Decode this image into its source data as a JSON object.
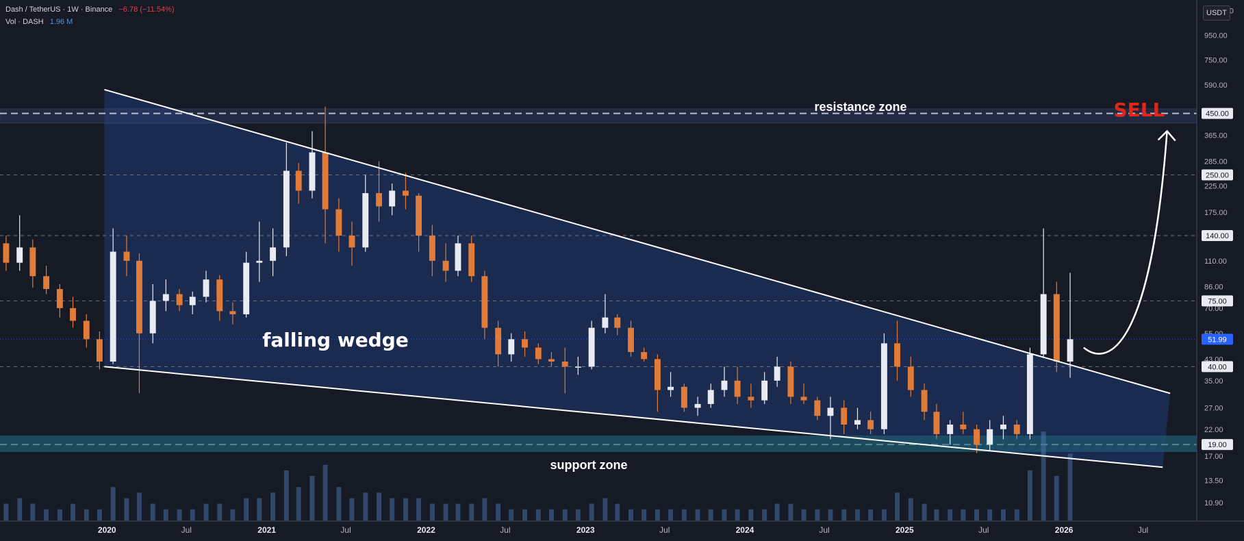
{
  "header": {
    "symbol": "Dash / TetherUS · 1W · Binance",
    "change": "−6.78 (−11.54%)",
    "volume_label": "Vol · DASH",
    "volume_value": "1.96 M"
  },
  "currency_button": "USDT",
  "colors": {
    "background": "#161a25",
    "wedge_fill": "#1c2d55",
    "up_candle": "#e8ecf2",
    "down_candle": "#e07b39",
    "volume": "#4a6fa5",
    "resistance_zone": "#3a4a7a",
    "support_zone": "#1f5a6e",
    "sell_text": "#e0261b",
    "price_badge": "#2962ff"
  },
  "chart_data": {
    "type": "candlestick",
    "y_scale": "log",
    "ylim": [
      9.2,
      1330
    ],
    "price_axis_ticks": [
      "1,200.00",
      "950.00",
      "750.00",
      "590.00",
      "450.00",
      "365.00",
      "285.00",
      "225.00",
      "175.00",
      "140.00",
      "110.00",
      "86.00",
      "70.00",
      "55.00",
      "43.00",
      "35.00",
      "27.00",
      "22.00",
      "17.00",
      "13.50",
      "10.90"
    ],
    "highlighted_levels": [
      "450.00",
      "250.00",
      "140.00",
      "75.00",
      "51.99",
      "40.00",
      "19.00"
    ],
    "last_price": "51.99",
    "time_axis_labels": [
      "2020",
      "Jul",
      "2021",
      "Jul",
      "2022",
      "Jul",
      "2023",
      "Jul",
      "2024",
      "Jul",
      "2025",
      "Jul",
      "2026",
      "Jul"
    ],
    "time_range": [
      "2019-05",
      "2026-11"
    ],
    "annotations": {
      "resistance": "resistance zone",
      "support": "support zone",
      "pattern": "falling wedge",
      "signal": "SELL"
    },
    "zones": {
      "resistance": [
        410,
        470
      ],
      "support": [
        17.7,
        20.7
      ]
    },
    "wedge": {
      "upper_line": [
        [
          "2019-12-26",
          565
        ],
        [
          "2026-09-01",
          31
        ]
      ],
      "lower_line": [
        [
          "2019-12-26",
          40
        ],
        [
          "2026-08-15",
          15.3
        ]
      ]
    },
    "projection_arrow": {
      "from": [
        "2026-02-15",
        48
      ],
      "to": [
        "2026-08-25",
        380
      ]
    },
    "series": [
      {
        "period": "2019-05",
        "open": 130,
        "high": 140,
        "low": 100,
        "close": 108
      },
      {
        "period": "2019-06",
        "open": 108,
        "high": 170,
        "low": 100,
        "close": 125
      },
      {
        "period": "2019-07",
        "open": 125,
        "high": 135,
        "low": 85,
        "close": 95
      },
      {
        "period": "2019-08",
        "open": 95,
        "high": 105,
        "low": 80,
        "close": 84
      },
      {
        "period": "2019-09",
        "open": 84,
        "high": 88,
        "low": 64,
        "close": 70
      },
      {
        "period": "2019-10",
        "open": 70,
        "high": 78,
        "low": 58,
        "close": 62
      },
      {
        "period": "2019-11",
        "open": 62,
        "high": 66,
        "low": 48,
        "close": 52
      },
      {
        "period": "2019-12",
        "open": 52,
        "high": 56,
        "low": 39,
        "close": 42
      },
      {
        "period": "2020-01",
        "open": 42,
        "high": 150,
        "low": 41,
        "close": 120
      },
      {
        "period": "2020-02",
        "open": 120,
        "high": 140,
        "low": 95,
        "close": 110
      },
      {
        "period": "2020-03",
        "open": 110,
        "high": 118,
        "low": 31,
        "close": 55
      },
      {
        "period": "2020-04",
        "open": 55,
        "high": 88,
        "low": 50,
        "close": 75
      },
      {
        "period": "2020-05",
        "open": 75,
        "high": 92,
        "low": 68,
        "close": 80
      },
      {
        "period": "2020-06",
        "open": 80,
        "high": 84,
        "low": 68,
        "close": 72
      },
      {
        "period": "2020-07",
        "open": 72,
        "high": 82,
        "low": 66,
        "close": 78
      },
      {
        "period": "2020-08",
        "open": 78,
        "high": 100,
        "low": 74,
        "close": 92
      },
      {
        "period": "2020-09",
        "open": 92,
        "high": 96,
        "low": 62,
        "close": 68
      },
      {
        "period": "2020-10",
        "open": 68,
        "high": 74,
        "low": 60,
        "close": 66
      },
      {
        "period": "2020-11",
        "open": 66,
        "high": 120,
        "low": 64,
        "close": 108
      },
      {
        "period": "2020-12",
        "open": 108,
        "high": 160,
        "low": 90,
        "close": 110
      },
      {
        "period": "2021-01",
        "open": 110,
        "high": 150,
        "low": 95,
        "close": 125
      },
      {
        "period": "2021-02",
        "open": 125,
        "high": 340,
        "low": 115,
        "close": 260
      },
      {
        "period": "2021-03",
        "open": 260,
        "high": 280,
        "low": 190,
        "close": 215
      },
      {
        "period": "2021-04",
        "open": 215,
        "high": 380,
        "low": 200,
        "close": 310
      },
      {
        "period": "2021-05",
        "open": 310,
        "high": 480,
        "low": 130,
        "close": 180
      },
      {
        "period": "2021-06",
        "open": 180,
        "high": 200,
        "low": 120,
        "close": 140
      },
      {
        "period": "2021-07",
        "open": 140,
        "high": 160,
        "low": 105,
        "close": 125
      },
      {
        "period": "2021-08",
        "open": 125,
        "high": 250,
        "low": 120,
        "close": 210
      },
      {
        "period": "2021-09",
        "open": 210,
        "high": 285,
        "low": 160,
        "close": 185
      },
      {
        "period": "2021-10",
        "open": 185,
        "high": 230,
        "low": 170,
        "close": 215
      },
      {
        "period": "2021-11",
        "open": 215,
        "high": 255,
        "low": 180,
        "close": 205
      },
      {
        "period": "2021-12",
        "open": 205,
        "high": 210,
        "low": 120,
        "close": 140
      },
      {
        "period": "2022-01",
        "open": 140,
        "high": 155,
        "low": 95,
        "close": 110
      },
      {
        "period": "2022-02",
        "open": 110,
        "high": 130,
        "low": 90,
        "close": 100
      },
      {
        "period": "2022-03",
        "open": 100,
        "high": 140,
        "low": 95,
        "close": 130
      },
      {
        "period": "2022-04",
        "open": 130,
        "high": 140,
        "low": 90,
        "close": 95
      },
      {
        "period": "2022-05",
        "open": 95,
        "high": 100,
        "low": 52,
        "close": 58
      },
      {
        "period": "2022-06",
        "open": 58,
        "high": 62,
        "low": 40,
        "close": 45
      },
      {
        "period": "2022-07",
        "open": 45,
        "high": 55,
        "low": 42,
        "close": 52
      },
      {
        "period": "2022-08",
        "open": 52,
        "high": 56,
        "low": 44,
        "close": 48
      },
      {
        "period": "2022-09",
        "open": 48,
        "high": 50,
        "low": 41,
        "close": 43
      },
      {
        "period": "2022-10",
        "open": 43,
        "high": 46,
        "low": 40,
        "close": 42
      },
      {
        "period": "2022-11",
        "open": 42,
        "high": 48,
        "low": 31,
        "close": 40
      },
      {
        "period": "2022-12",
        "open": 40,
        "high": 44,
        "low": 37,
        "close": 40
      },
      {
        "period": "2023-01",
        "open": 40,
        "high": 62,
        "low": 39,
        "close": 58
      },
      {
        "period": "2023-02",
        "open": 58,
        "high": 80,
        "low": 55,
        "close": 64
      },
      {
        "period": "2023-03",
        "open": 64,
        "high": 66,
        "low": 54,
        "close": 58
      },
      {
        "period": "2023-04",
        "open": 58,
        "high": 62,
        "low": 44,
        "close": 46
      },
      {
        "period": "2023-05",
        "open": 46,
        "high": 48,
        "low": 42,
        "close": 43
      },
      {
        "period": "2023-06",
        "open": 43,
        "high": 45,
        "low": 26,
        "close": 32
      },
      {
        "period": "2023-07",
        "open": 32,
        "high": 38,
        "low": 30,
        "close": 33
      },
      {
        "period": "2023-08",
        "open": 33,
        "high": 34,
        "low": 26,
        "close": 27
      },
      {
        "period": "2023-09",
        "open": 27,
        "high": 30,
        "low": 25,
        "close": 28
      },
      {
        "period": "2023-10",
        "open": 28,
        "high": 34,
        "low": 27,
        "close": 32
      },
      {
        "period": "2023-11",
        "open": 32,
        "high": 40,
        "low": 30,
        "close": 35
      },
      {
        "period": "2023-12",
        "open": 35,
        "high": 40,
        "low": 28,
        "close": 30
      },
      {
        "period": "2024-01",
        "open": 30,
        "high": 34,
        "low": 27,
        "close": 29
      },
      {
        "period": "2024-02",
        "open": 29,
        "high": 38,
        "low": 28,
        "close": 35
      },
      {
        "period": "2024-03",
        "open": 35,
        "high": 44,
        "low": 33,
        "close": 40
      },
      {
        "period": "2024-04",
        "open": 40,
        "high": 42,
        "low": 28,
        "close": 30
      },
      {
        "period": "2024-05",
        "open": 30,
        "high": 34,
        "low": 28,
        "close": 29
      },
      {
        "period": "2024-06",
        "open": 29,
        "high": 30,
        "low": 24,
        "close": 25
      },
      {
        "period": "2024-07",
        "open": 25,
        "high": 30,
        "low": 20,
        "close": 27
      },
      {
        "period": "2024-08",
        "open": 27,
        "high": 29,
        "low": 21,
        "close": 23
      },
      {
        "period": "2024-09",
        "open": 23,
        "high": 27,
        "low": 22,
        "close": 24
      },
      {
        "period": "2024-10",
        "open": 24,
        "high": 26,
        "low": 21,
        "close": 22
      },
      {
        "period": "2024-11",
        "open": 22,
        "high": 55,
        "low": 21,
        "close": 50
      },
      {
        "period": "2024-12",
        "open": 50,
        "high": 62,
        "low": 35,
        "close": 40
      },
      {
        "period": "2025-01",
        "open": 40,
        "high": 44,
        "low": 30,
        "close": 32
      },
      {
        "period": "2025-02",
        "open": 32,
        "high": 34,
        "low": 24,
        "close": 26
      },
      {
        "period": "2025-03",
        "open": 26,
        "high": 28,
        "low": 20,
        "close": 21
      },
      {
        "period": "2025-04",
        "open": 21,
        "high": 24,
        "low": 19,
        "close": 23
      },
      {
        "period": "2025-05",
        "open": 23,
        "high": 26,
        "low": 21,
        "close": 22
      },
      {
        "period": "2025-06",
        "open": 22,
        "high": 23,
        "low": 17.5,
        "close": 19
      },
      {
        "period": "2025-07",
        "open": 19,
        "high": 24,
        "low": 18,
        "close": 22
      },
      {
        "period": "2025-08",
        "open": 22,
        "high": 25,
        "low": 20,
        "close": 23
      },
      {
        "period": "2025-09",
        "open": 23,
        "high": 24,
        "low": 20,
        "close": 21
      },
      {
        "period": "2025-10",
        "open": 21,
        "high": 48,
        "low": 20,
        "close": 45
      },
      {
        "period": "2025-11",
        "open": 45,
        "high": 150,
        "low": 44,
        "close": 80
      },
      {
        "period": "2025-12",
        "open": 80,
        "high": 90,
        "low": 38,
        "close": 42
      },
      {
        "period": "2026-01",
        "open": 42,
        "high": 98,
        "low": 36,
        "close": 52
      }
    ],
    "volume": [
      3,
      4,
      3,
      2,
      2,
      3,
      2,
      2,
      6,
      4,
      5,
      3,
      2,
      2,
      2,
      3,
      3,
      2,
      4,
      4,
      5,
      9,
      6,
      8,
      10,
      6,
      4,
      5,
      5,
      4,
      4,
      4,
      3,
      3,
      3,
      3,
      4,
      3,
      2,
      2,
      2,
      2,
      2,
      2,
      3,
      4,
      3,
      2,
      2,
      2,
      2,
      2,
      2,
      2,
      2,
      2,
      2,
      2,
      3,
      3,
      2,
      2,
      2,
      2,
      2,
      2,
      2,
      5,
      4,
      3,
      2,
      2,
      2,
      2,
      2,
      2,
      2,
      9,
      16,
      8,
      12
    ]
  }
}
